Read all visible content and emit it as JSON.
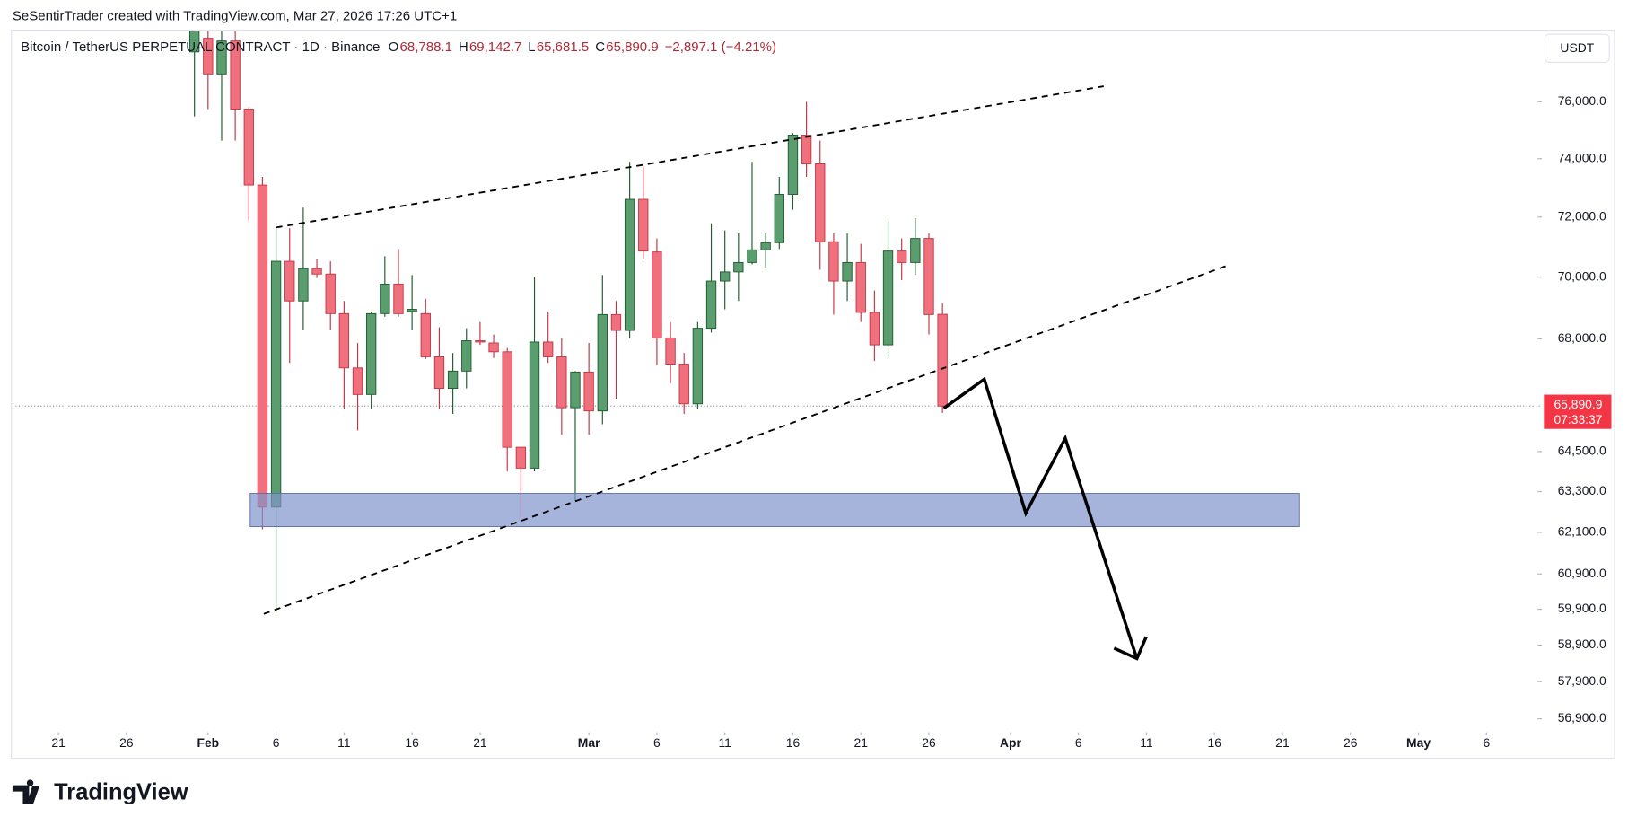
{
  "header": {
    "credit": "SeSentirTrader created with TradingView.com, Mar 27, 2026 17:26 UTC+1"
  },
  "currency_button": "USDT",
  "logo": "TradingView",
  "chart_data": {
    "type": "candlestick",
    "title": "Bitcoin / TetherUS PERPETUAL CONTRACT · 1D · Binance",
    "legend": [
      {
        "key": "O",
        "value": "68,788.1"
      },
      {
        "key": "H",
        "value": "69,142.7"
      },
      {
        "key": "L",
        "value": "65,681.5"
      },
      {
        "key": "C",
        "value": "65,890.9"
      }
    ],
    "change": "−2,897.1 (−4.21%)",
    "up_color": "#5a9e6f",
    "up_border": "#1f5b2e",
    "down_color": "#f0717d",
    "down_border": "#c23544",
    "log_scale": true,
    "x": [
      "2026-01-31",
      "2026-02-01",
      "2026-02-02",
      "2026-02-03",
      "2026-02-04",
      "2026-02-05",
      "2026-02-06",
      "2026-02-07",
      "2026-02-08",
      "2026-02-09",
      "2026-02-10",
      "2026-02-11",
      "2026-02-12",
      "2026-02-13",
      "2026-02-14",
      "2026-02-15",
      "2026-02-16",
      "2026-02-17",
      "2026-02-18",
      "2026-02-19",
      "2026-02-20",
      "2026-02-21",
      "2026-02-22",
      "2026-02-23",
      "2026-02-24",
      "2026-02-25",
      "2026-02-26",
      "2026-02-27",
      "2026-02-28",
      "2026-03-01",
      "2026-03-02",
      "2026-03-03",
      "2026-03-04",
      "2026-03-05",
      "2026-03-06",
      "2026-03-07",
      "2026-03-08",
      "2026-03-09",
      "2026-03-10",
      "2026-03-11",
      "2026-03-12",
      "2026-03-13",
      "2026-03-14",
      "2026-03-15",
      "2026-03-16",
      "2026-03-17",
      "2026-03-18",
      "2026-03-19",
      "2026-03-20",
      "2026-03-21",
      "2026-03-22",
      "2026-03-23",
      "2026-03-24",
      "2026-03-25",
      "2026-03-26",
      "2026-03-27"
    ],
    "open": [
      77800,
      78300,
      77000,
      78200,
      75740,
      73090,
      62840,
      70520,
      69220,
      70280,
      70100,
      68810,
      67080,
      66250,
      68810,
      69770,
      68880,
      68810,
      67430,
      66440,
      66980,
      67940,
      67870,
      67590,
      64630,
      64000,
      67900,
      67430,
      65840,
      66950,
      65740,
      68780,
      68270,
      72600,
      70830,
      68030,
      67200,
      65960,
      68340,
      69870,
      70170,
      70480,
      70900,
      71140,
      72770,
      74820,
      73820,
      71170,
      69870,
      70480,
      68850,
      67810,
      70860,
      70480,
      71280,
      68788.1
    ],
    "high": [
      79300,
      79000,
      78800,
      78700,
      75800,
      73370,
      71620,
      71620,
      72320,
      70590,
      70520,
      69220,
      67870,
      68880,
      70690,
      70930,
      70070,
      69290,
      68370,
      67550,
      68340,
      68540,
      68140,
      67710,
      64630,
      70000,
      68880,
      68030,
      66980,
      67870,
      70070,
      69220,
      73890,
      73720,
      71280,
      68540,
      67550,
      68540,
      71790,
      71550,
      71450,
      73890,
      71450,
      73370,
      74890,
      76000,
      74630,
      71450,
      71450,
      71100,
      69560,
      71860,
      71280,
      71965,
      71450,
      69142.7
    ],
    "low": [
      75480,
      75740,
      74630,
      74630,
      71860,
      62190,
      59840,
      67240,
      68270,
      69970,
      68270,
      65810,
      65140,
      65810,
      68710,
      68710,
      68270,
      67360,
      65810,
      65650,
      66440,
      67810,
      67390,
      63900,
      62500,
      63900,
      67240,
      65010,
      63020,
      65010,
      65330,
      66120,
      68030,
      70590,
      67170,
      66600,
      65650,
      65810,
      68200,
      68950,
      69220,
      70420,
      70310,
      70930,
      72250,
      73370,
      70240,
      68780,
      69220,
      68540,
      67300,
      67390,
      69900,
      70070,
      68140,
      65681.5
    ],
    "close": [
      78600,
      77000,
      78200,
      75740,
      73090,
      62840,
      70520,
      69220,
      70280,
      70100,
      68810,
      67080,
      66250,
      68810,
      69770,
      68810,
      68950,
      67430,
      66440,
      66980,
      67940,
      67900,
      67590,
      64630,
      64000,
      67900,
      67430,
      65840,
      66950,
      65740,
      68780,
      68270,
      72600,
      70860,
      68030,
      67200,
      65960,
      68340,
      69870,
      70170,
      70480,
      70900,
      71140,
      72770,
      74820,
      73820,
      71170,
      69870,
      70480,
      68850,
      67810,
      70860,
      70480,
      71280,
      68780,
      65890.9
    ],
    "xlim": [
      "2026-01-18",
      "2026-05-09"
    ],
    "xticks": [
      {
        "value": "2026-01-21",
        "label": "21"
      },
      {
        "value": "2026-01-26",
        "label": "26"
      },
      {
        "value": "2026-02-01",
        "label": "Feb"
      },
      {
        "value": "2026-02-06",
        "label": "6"
      },
      {
        "value": "2026-02-11",
        "label": "11"
      },
      {
        "value": "2026-02-16",
        "label": "16"
      },
      {
        "value": "2026-02-21",
        "label": "21"
      },
      {
        "value": "2026-03-01",
        "label": "Mar"
      },
      {
        "value": "2026-03-06",
        "label": "6"
      },
      {
        "value": "2026-03-11",
        "label": "11"
      },
      {
        "value": "2026-03-16",
        "label": "16"
      },
      {
        "value": "2026-03-21",
        "label": "21"
      },
      {
        "value": "2026-03-26",
        "label": "26"
      },
      {
        "value": "2026-04-01",
        "label": "Apr"
      },
      {
        "value": "2026-04-06",
        "label": "6"
      },
      {
        "value": "2026-04-11",
        "label": "11"
      },
      {
        "value": "2026-04-16",
        "label": "16"
      },
      {
        "value": "2026-04-21",
        "label": "21"
      },
      {
        "value": "2026-04-26",
        "label": "26"
      },
      {
        "value": "2026-05-01",
        "label": "May"
      },
      {
        "value": "2026-05-06",
        "label": "6"
      }
    ],
    "ylim": [
      56540,
      78560
    ],
    "yticks": [
      {
        "value": 76000,
        "label": "76,000.0"
      },
      {
        "value": 74000,
        "label": "74,000.0"
      },
      {
        "value": 72000,
        "label": "72,000.0"
      },
      {
        "value": 70000,
        "label": "70,000.0"
      },
      {
        "value": 68000,
        "label": "68,000.0"
      },
      {
        "value": 64500,
        "label": "64,500.0"
      },
      {
        "value": 63300,
        "label": "63,300.0"
      },
      {
        "value": 62100,
        "label": "62,100.0"
      },
      {
        "value": 60900,
        "label": "60,900.0"
      },
      {
        "value": 59900,
        "label": "59,900.0"
      },
      {
        "value": 58900,
        "label": "58,900.0"
      },
      {
        "value": 57900,
        "label": "57,900.0"
      },
      {
        "value": 56900,
        "label": "56,900.0"
      }
    ],
    "price_label": {
      "value": 65890.9,
      "label": "65,890.9",
      "countdown": "07:33:37",
      "color": "#f23645"
    }
  }
}
